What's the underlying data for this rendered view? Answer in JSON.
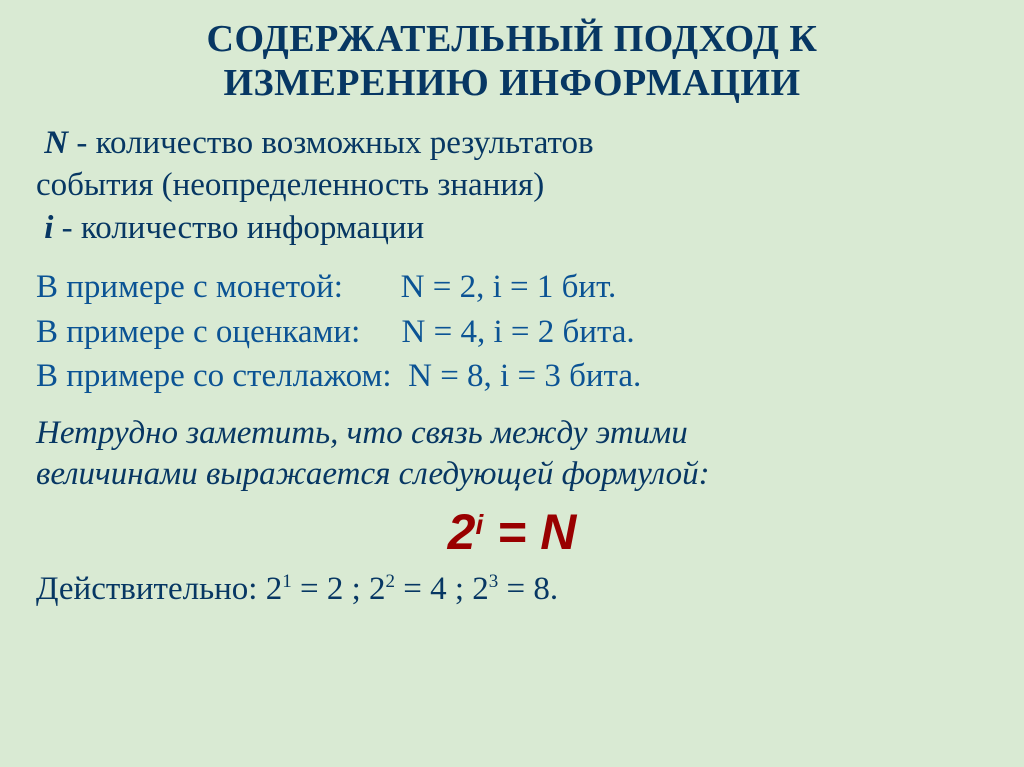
{
  "colors": {
    "background": "#d9ead3",
    "title": "#073763",
    "body_text": "#073763",
    "example_text": "#0b5394",
    "formula": "#990000"
  },
  "typography": {
    "title_fontsize": 38,
    "body_fontsize": 33,
    "formula_fontsize": 50,
    "title_weight": "bold",
    "font_family": "Times New Roman"
  },
  "title": {
    "line1": "СОДЕРЖАТЕЛЬНЫЙ  ПОДХОД  К",
    "line2": "ИЗМЕРЕНИЮ  ИНФОРМАЦИИ"
  },
  "definitions": {
    "n_var": "N",
    "n_text_part1": " - количество возможных результатов",
    "n_text_part2": "события (неопределенность знания)",
    "i_var": "i",
    "i_text": " - количество информации"
  },
  "examples": [
    {
      "label": "В примере с монетой:       ",
      "values": "N = 2, i = 1 бит."
    },
    {
      "label": "В примере с оценками:     ",
      "values": "N = 4, i = 2 бита."
    },
    {
      "label": "В примере со стеллажом:  ",
      "values": "N = 8, i = 3 бита."
    }
  ],
  "note": {
    "line1": "Нетрудно заметить, что связь между этими",
    "line2": "величинами выражается следующей формулой:"
  },
  "formula": {
    "base": "2",
    "exp": "i",
    "eq": " = ",
    "rhs": "N"
  },
  "conclusion": {
    "prefix": "Действительно: ",
    "items": [
      {
        "base": "2",
        "exp": "1",
        "eq": " = 2"
      },
      {
        "base": "2",
        "exp": "2",
        "eq": " = 4"
      },
      {
        "base": "2",
        "exp": "3",
        "eq": " = 8."
      }
    ],
    "sep": " ; "
  }
}
